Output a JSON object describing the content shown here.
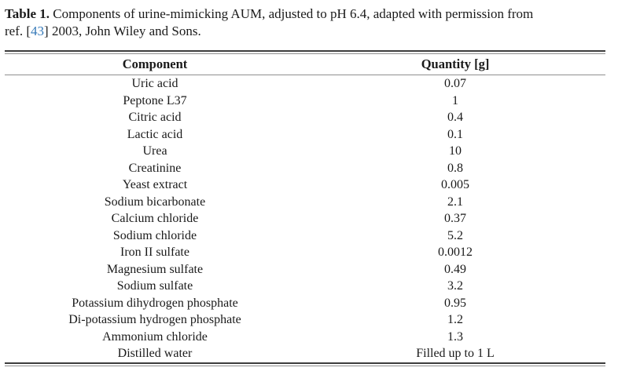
{
  "caption": {
    "label": "Table 1.",
    "line1_rest": " Components of urine-mimicking AUM, adjusted to pH 6.4, adapted with permission from",
    "line2_before": "ref. [",
    "ref_number": "43",
    "line2_after": "] 2003, John Wiley and Sons."
  },
  "table": {
    "headers": [
      "Component",
      "Quantity [g]"
    ],
    "rows": [
      [
        "Uric acid",
        "0.07"
      ],
      [
        "Peptone L37",
        "1"
      ],
      [
        "Citric acid",
        "0.4"
      ],
      [
        "Lactic acid",
        "0.1"
      ],
      [
        "Urea",
        "10"
      ],
      [
        "Creatinine",
        "0.8"
      ],
      [
        "Yeast extract",
        "0.005"
      ],
      [
        "Sodium bicarbonate",
        "2.1"
      ],
      [
        "Calcium chloride",
        "0.37"
      ],
      [
        "Sodium chloride",
        "5.2"
      ],
      [
        "Iron II sulfate",
        "0.0012"
      ],
      [
        "Magnesium sulfate",
        "0.49"
      ],
      [
        "Sodium sulfate",
        "3.2"
      ],
      [
        "Potassium dihydrogen phosphate",
        "0.95"
      ],
      [
        "Di-potassium hydrogen phosphate",
        "1.2"
      ],
      [
        "Ammonium chloride",
        "1.3"
      ],
      [
        "Distilled water",
        "Filled up to 1 L"
      ]
    ]
  },
  "colors": {
    "text": "#1a1a1a",
    "ref_link": "#3579b8",
    "rule_dark": "#3d3d3d",
    "rule_light": "#8f8f8f"
  }
}
